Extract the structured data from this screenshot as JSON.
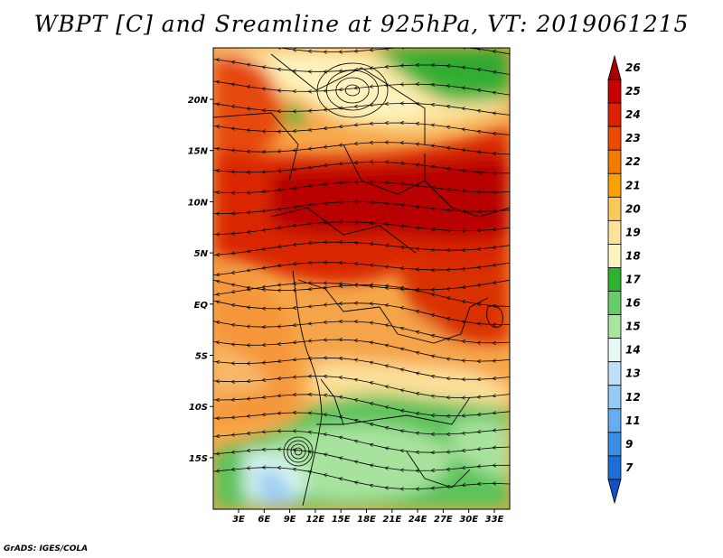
{
  "title": "WBPT [C] and Sreamline at 925hPa, VT: 2019061215",
  "credit": "GrADS: IGES/COLA",
  "map": {
    "lat_ticks": [
      "20N",
      "15N",
      "10N",
      "5N",
      "EQ",
      "5S",
      "10S",
      "15S"
    ],
    "lon_ticks": [
      "3E",
      "6E",
      "9E",
      "12E",
      "15E",
      "18E",
      "21E",
      "24E",
      "27E",
      "30E",
      "33E"
    ]
  },
  "colorbar": {
    "labels": [
      "26",
      "25",
      "24",
      "23",
      "22",
      "21",
      "20",
      "19",
      "18",
      "17",
      "16",
      "15",
      "14",
      "13",
      "12",
      "11",
      "9",
      "7"
    ],
    "colors": [
      "#a80000",
      "#c80000",
      "#dd2100",
      "#ee4b00",
      "#f57b00",
      "#f8a100",
      "#fbc95a",
      "#fde39a",
      "#fdf5bd",
      "#2fb02f",
      "#66cc66",
      "#a8e6a0",
      "#e6fbf4",
      "#bfe0fb",
      "#94cbf7",
      "#63adf0",
      "#3a8ee6",
      "#1e6ed8",
      "#1450c0"
    ]
  }
}
